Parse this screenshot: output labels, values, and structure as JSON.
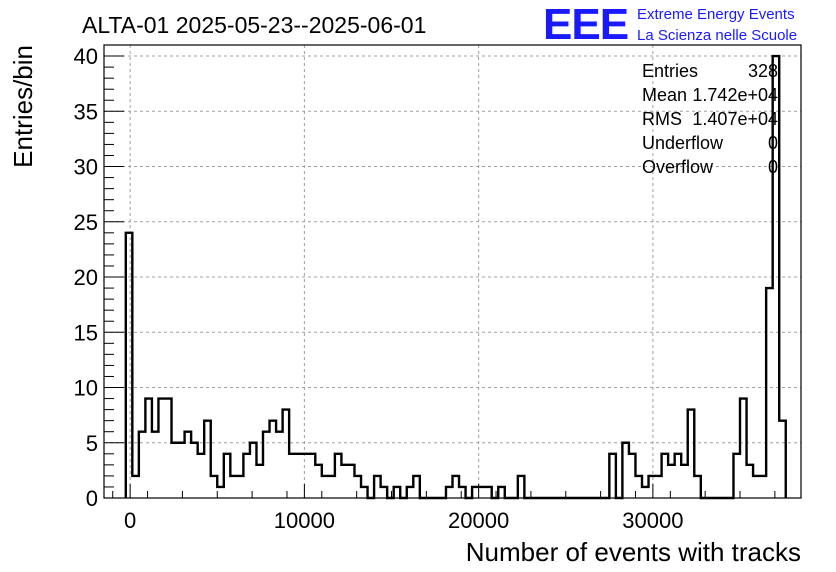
{
  "header": {
    "title": "ALTA-01 2025-05-23--2025-06-01",
    "logo_text": "EEE",
    "logo_line1": "Extreme Energy Events",
    "logo_line2": "La Scienza nelle Scuole",
    "logo_color": "#1a1aff"
  },
  "stats": [
    {
      "label": "Entries",
      "value": "328"
    },
    {
      "label": "Mean",
      "value": "1.742e+04"
    },
    {
      "label": "RMS",
      "value": "1.407e+04"
    },
    {
      "label": "Underflow",
      "value": "0"
    },
    {
      "label": "Overflow",
      "value": "0"
    }
  ],
  "chart_data": {
    "type": "bar",
    "xlabel": "Number of events with tracks",
    "ylabel": "Entries/bin",
    "xlim": [
      -1500,
      38500
    ],
    "ylim": [
      0,
      41
    ],
    "bin_start": -250,
    "bin_width": 375,
    "values": [
      24,
      2,
      6,
      9,
      6,
      9,
      9,
      5,
      5,
      6,
      5,
      4,
      7,
      2,
      1,
      4,
      2,
      2,
      4,
      5,
      3,
      6,
      7,
      6,
      8,
      4,
      4,
      4,
      4,
      3,
      2,
      2,
      4,
      3,
      3,
      2,
      1,
      0,
      2,
      1,
      0,
      1,
      0,
      1,
      2,
      0,
      0,
      0,
      0,
      1,
      2,
      1,
      0,
      1,
      1,
      1,
      0,
      1,
      0,
      0,
      2,
      0,
      0,
      0,
      0,
      0,
      0,
      0,
      0,
      0,
      0,
      0,
      0,
      0,
      4,
      0,
      5,
      4,
      2,
      1,
      2,
      2,
      4,
      3,
      4,
      3,
      8,
      2,
      0,
      0,
      0,
      0,
      0,
      4,
      9,
      3,
      2,
      2,
      19,
      40,
      7
    ],
    "xticks": [
      "0",
      "10000",
      "20000",
      "30000"
    ],
    "xtick_values": [
      0,
      10000,
      20000,
      30000
    ],
    "yticks": [
      "0",
      "5",
      "10",
      "15",
      "20",
      "25",
      "30",
      "35",
      "40"
    ],
    "ytick_values": [
      0,
      5,
      10,
      15,
      20,
      25,
      30,
      35,
      40
    ],
    "grid": true,
    "legend": "top-right"
  }
}
